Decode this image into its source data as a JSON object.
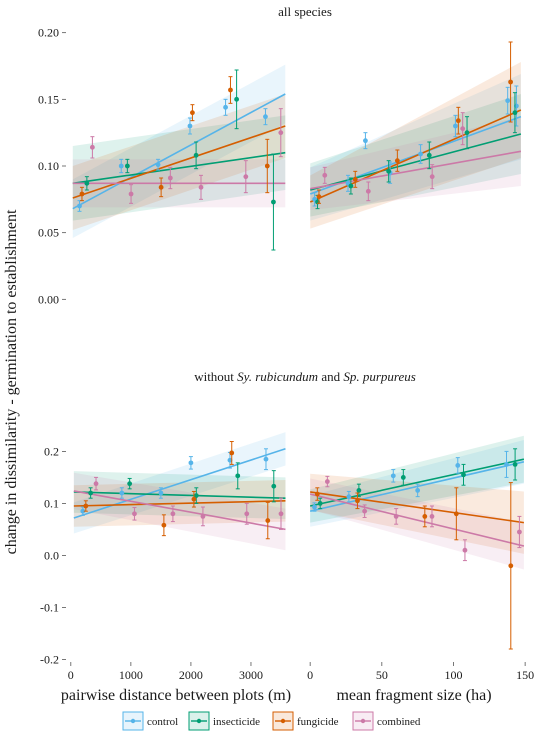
{
  "figure": {
    "top_title": "all species",
    "bottom_title_parts": [
      {
        "text": "without ",
        "italic": false
      },
      {
        "text": "Sy. rubicundum",
        "italic": true
      },
      {
        "text": " and ",
        "italic": false
      },
      {
        "text": "Sp. purpureus",
        "italic": true
      }
    ],
    "ylabel": "change in dissimilarity - germination to establishment",
    "xlabel_left": "pairwise distance between plots (m)",
    "xlabel_right": "mean fragment size (ha)"
  },
  "legend": [
    {
      "name": "control",
      "color": "#56B4E9"
    },
    {
      "name": "insecticide",
      "color": "#009E73"
    },
    {
      "name": "fungicide",
      "color": "#D55E00"
    },
    {
      "name": "combined",
      "color": "#CC79A7"
    }
  ],
  "chart_data": [
    {
      "type": "scatter",
      "panel": "top-left",
      "x_variable": "pairwise distance between plots (m)",
      "xlim": [
        0,
        3650
      ],
      "ylim": [
        -0.005,
        0.205
      ],
      "y_ticks": [
        "0.00",
        "0.05",
        "0.10",
        "0.15",
        "0.20"
      ],
      "x_ticks": [],
      "series": [
        {
          "name": "control",
          "color": "#56B4E9",
          "points": [
            {
              "x": 220,
              "y": 0.07,
              "e": 0.004
            },
            {
              "x": 900,
              "y": 0.1,
              "e": 0.005
            },
            {
              "x": 1500,
              "y": 0.101,
              "e": 0.004
            },
            {
              "x": 2020,
              "y": 0.13,
              "e": 0.006
            },
            {
              "x": 2600,
              "y": 0.144,
              "e": 0.006
            },
            {
              "x": 3250,
              "y": 0.137,
              "e": 0.006
            }
          ],
          "fit": [
            0.068,
            0.154
          ],
          "band": [
            0.022,
            0.022
          ]
        },
        {
          "name": "insecticide",
          "color": "#009E73",
          "points": [
            {
              "x": 340,
              "y": 0.087,
              "e": 0.005
            },
            {
              "x": 1000,
              "y": 0.1,
              "e": 0.005
            },
            {
              "x": 2120,
              "y": 0.108,
              "e": 0.01
            },
            {
              "x": 2780,
              "y": 0.15,
              "e": 0.022
            },
            {
              "x": 3380,
              "y": 0.073,
              "e": 0.036
            }
          ],
          "fit": [
            0.087,
            0.11
          ],
          "band": [
            0.028,
            0.028
          ]
        },
        {
          "name": "fungicide",
          "color": "#D55E00",
          "points": [
            {
              "x": 260,
              "y": 0.079,
              "e": 0.005
            },
            {
              "x": 1550,
              "y": 0.084,
              "e": 0.007
            },
            {
              "x": 2060,
              "y": 0.14,
              "e": 0.006
            },
            {
              "x": 2680,
              "y": 0.157,
              "e": 0.01
            },
            {
              "x": 3280,
              "y": 0.1,
              "e": 0.02
            }
          ],
          "fit": [
            0.076,
            0.13
          ],
          "band": [
            0.024,
            0.024
          ]
        },
        {
          "name": "combined",
          "color": "#CC79A7",
          "points": [
            {
              "x": 430,
              "y": 0.114,
              "e": 0.008
            },
            {
              "x": 1060,
              "y": 0.079,
              "e": 0.007
            },
            {
              "x": 1700,
              "y": 0.091,
              "e": 0.008
            },
            {
              "x": 2200,
              "y": 0.084,
              "e": 0.009
            },
            {
              "x": 2930,
              "y": 0.092,
              "e": 0.012
            },
            {
              "x": 3500,
              "y": 0.125,
              "e": 0.018
            }
          ],
          "fit": [
            0.087,
            0.087
          ],
          "band": [
            0.018,
            0.018
          ]
        }
      ]
    },
    {
      "type": "scatter",
      "panel": "top-right",
      "x_variable": "mean fragment size (ha)",
      "xlim": [
        -5,
        150
      ],
      "ylim": [
        -0.005,
        0.205
      ],
      "y_ticks": [],
      "x_ticks": [],
      "series": [
        {
          "name": "control",
          "color": "#56B4E9",
          "points": [
            {
              "x": 3,
              "y": 0.075,
              "e": 0.005
            },
            {
              "x": 26,
              "y": 0.087,
              "e": 0.006
            },
            {
              "x": 38,
              "y": 0.119,
              "e": 0.006
            },
            {
              "x": 55,
              "y": 0.095,
              "e": 0.008
            },
            {
              "x": 76,
              "y": 0.109,
              "e": 0.007
            },
            {
              "x": 100,
              "y": 0.13,
              "e": 0.008
            },
            {
              "x": 136,
              "y": 0.149,
              "e": 0.01
            },
            {
              "x": 142,
              "y": 0.145,
              "e": 0.015
            }
          ],
          "fit": [
            0.079,
            0.137
          ],
          "band": [
            0.02,
            0.032
          ]
        },
        {
          "name": "insecticide",
          "color": "#009E73",
          "points": [
            {
              "x": 5,
              "y": 0.073,
              "e": 0.005
            },
            {
              "x": 28,
              "y": 0.085,
              "e": 0.006
            },
            {
              "x": 54,
              "y": 0.096,
              "e": 0.008
            },
            {
              "x": 82,
              "y": 0.108,
              "e": 0.01
            },
            {
              "x": 108,
              "y": 0.125,
              "e": 0.012
            },
            {
              "x": 141,
              "y": 0.14,
              "e": 0.015
            }
          ],
          "fit": [
            0.082,
            0.124
          ],
          "band": [
            0.02,
            0.03
          ]
        },
        {
          "name": "fungicide",
          "color": "#D55E00",
          "points": [
            {
              "x": 6,
              "y": 0.077,
              "e": 0.005
            },
            {
              "x": 31,
              "y": 0.09,
              "e": 0.006
            },
            {
              "x": 60,
              "y": 0.104,
              "e": 0.008
            },
            {
              "x": 102,
              "y": 0.134,
              "e": 0.01
            },
            {
              "x": 138,
              "y": 0.163,
              "e": 0.03
            }
          ],
          "fit": [
            0.073,
            0.142
          ],
          "band": [
            0.02,
            0.036
          ]
        },
        {
          "name": "combined",
          "color": "#CC79A7",
          "points": [
            {
              "x": 10,
              "y": 0.093,
              "e": 0.006
            },
            {
              "x": 40,
              "y": 0.081,
              "e": 0.007
            },
            {
              "x": 84,
              "y": 0.092,
              "e": 0.009
            },
            {
              "x": 105,
              "y": 0.128,
              "e": 0.012
            }
          ],
          "fit": [
            0.083,
            0.111
          ],
          "band": [
            0.016,
            0.026
          ]
        }
      ]
    },
    {
      "type": "scatter",
      "panel": "bottom-left",
      "x_variable": "pairwise distance between plots (m)",
      "xlim": [
        -80,
        3650
      ],
      "ylim": [
        -0.205,
        0.245
      ],
      "y_ticks": [
        "-0.2",
        "-0.1",
        "0.0",
        "0.1",
        "0.2"
      ],
      "x_ticks": [
        "0",
        "1000",
        "2000",
        "3000"
      ],
      "series": [
        {
          "name": "control",
          "color": "#56B4E9",
          "points": [
            {
              "x": 200,
              "y": 0.085,
              "e": 0.008
            },
            {
              "x": 850,
              "y": 0.12,
              "e": 0.01
            },
            {
              "x": 1500,
              "y": 0.12,
              "e": 0.01
            },
            {
              "x": 2000,
              "y": 0.178,
              "e": 0.012
            },
            {
              "x": 2650,
              "y": 0.183,
              "e": 0.015
            },
            {
              "x": 3250,
              "y": 0.185,
              "e": 0.02
            }
          ],
          "fit": [
            0.072,
            0.205
          ],
          "band": [
            0.03,
            0.032
          ]
        },
        {
          "name": "insecticide",
          "color": "#009E73",
          "points": [
            {
              "x": 330,
              "y": 0.12,
              "e": 0.01
            },
            {
              "x": 980,
              "y": 0.138,
              "e": 0.01
            },
            {
              "x": 2090,
              "y": 0.115,
              "e": 0.015
            },
            {
              "x": 2780,
              "y": 0.153,
              "e": 0.025
            },
            {
              "x": 3380,
              "y": 0.133,
              "e": 0.03
            }
          ],
          "fit": [
            0.122,
            0.11
          ],
          "band": [
            0.04,
            0.04
          ]
        },
        {
          "name": "fungicide",
          "color": "#D55E00",
          "points": [
            {
              "x": 250,
              "y": 0.095,
              "e": 0.01
            },
            {
              "x": 1550,
              "y": 0.058,
              "e": 0.02
            },
            {
              "x": 2050,
              "y": 0.108,
              "e": 0.015
            },
            {
              "x": 2680,
              "y": 0.197,
              "e": 0.022
            },
            {
              "x": 3280,
              "y": 0.067,
              "e": 0.035
            }
          ],
          "fit": [
            0.095,
            0.105
          ],
          "band": [
            0.04,
            0.04
          ]
        },
        {
          "name": "combined",
          "color": "#CC79A7",
          "points": [
            {
              "x": 420,
              "y": 0.138,
              "e": 0.012
            },
            {
              "x": 1060,
              "y": 0.08,
              "e": 0.012
            },
            {
              "x": 1700,
              "y": 0.08,
              "e": 0.015
            },
            {
              "x": 2200,
              "y": 0.075,
              "e": 0.018
            },
            {
              "x": 2930,
              "y": 0.08,
              "e": 0.02
            },
            {
              "x": 3500,
              "y": 0.08,
              "e": 0.03
            }
          ],
          "fit": [
            0.124,
            0.05
          ],
          "band": [
            0.035,
            0.04
          ]
        }
      ]
    },
    {
      "type": "scatter",
      "panel": "bottom-right",
      "x_variable": "mean fragment size (ha)",
      "xlim": [
        -5,
        152
      ],
      "ylim": [
        -0.205,
        0.245
      ],
      "y_ticks": [],
      "x_ticks": [
        "0",
        "50",
        "100",
        "150"
      ],
      "series": [
        {
          "name": "control",
          "color": "#56B4E9",
          "points": [
            {
              "x": 3,
              "y": 0.093,
              "e": 0.008
            },
            {
              "x": 27,
              "y": 0.113,
              "e": 0.01
            },
            {
              "x": 58,
              "y": 0.153,
              "e": 0.012
            },
            {
              "x": 75,
              "y": 0.125,
              "e": 0.012
            },
            {
              "x": 103,
              "y": 0.173,
              "e": 0.015
            },
            {
              "x": 137,
              "y": 0.175,
              "e": 0.025
            }
          ],
          "fit": [
            0.085,
            0.18
          ],
          "band": [
            0.03,
            0.042
          ]
        },
        {
          "name": "insecticide",
          "color": "#009E73",
          "points": [
            {
              "x": 7,
              "y": 0.1,
              "e": 0.01
            },
            {
              "x": 34,
              "y": 0.125,
              "e": 0.012
            },
            {
              "x": 65,
              "y": 0.15,
              "e": 0.015
            },
            {
              "x": 107,
              "y": 0.155,
              "e": 0.02
            },
            {
              "x": 143,
              "y": 0.175,
              "e": 0.03
            }
          ],
          "fit": [
            0.095,
            0.185
          ],
          "band": [
            0.032,
            0.045
          ]
        },
        {
          "name": "fungicide",
          "color": "#D55E00",
          "points": [
            {
              "x": 5,
              "y": 0.118,
              "e": 0.012
            },
            {
              "x": 33,
              "y": 0.105,
              "e": 0.015
            },
            {
              "x": 80,
              "y": 0.075,
              "e": 0.02
            },
            {
              "x": 102,
              "y": 0.08,
              "e": 0.05
            },
            {
              "x": 140,
              "y": -0.02,
              "e": 0.16
            }
          ],
          "fit": [
            0.122,
            0.063
          ],
          "band": [
            0.035,
            0.06
          ]
        },
        {
          "name": "combined",
          "color": "#CC79A7",
          "points": [
            {
              "x": 12,
              "y": 0.142,
              "e": 0.01
            },
            {
              "x": 38,
              "y": 0.085,
              "e": 0.012
            },
            {
              "x": 60,
              "y": 0.075,
              "e": 0.015
            },
            {
              "x": 85,
              "y": 0.075,
              "e": 0.02
            },
            {
              "x": 108,
              "y": 0.01,
              "e": 0.02
            },
            {
              "x": 146,
              "y": 0.045,
              "e": 0.03
            }
          ],
          "fit": [
            0.118,
            0.018
          ],
          "band": [
            0.03,
            0.045
          ]
        }
      ]
    }
  ]
}
